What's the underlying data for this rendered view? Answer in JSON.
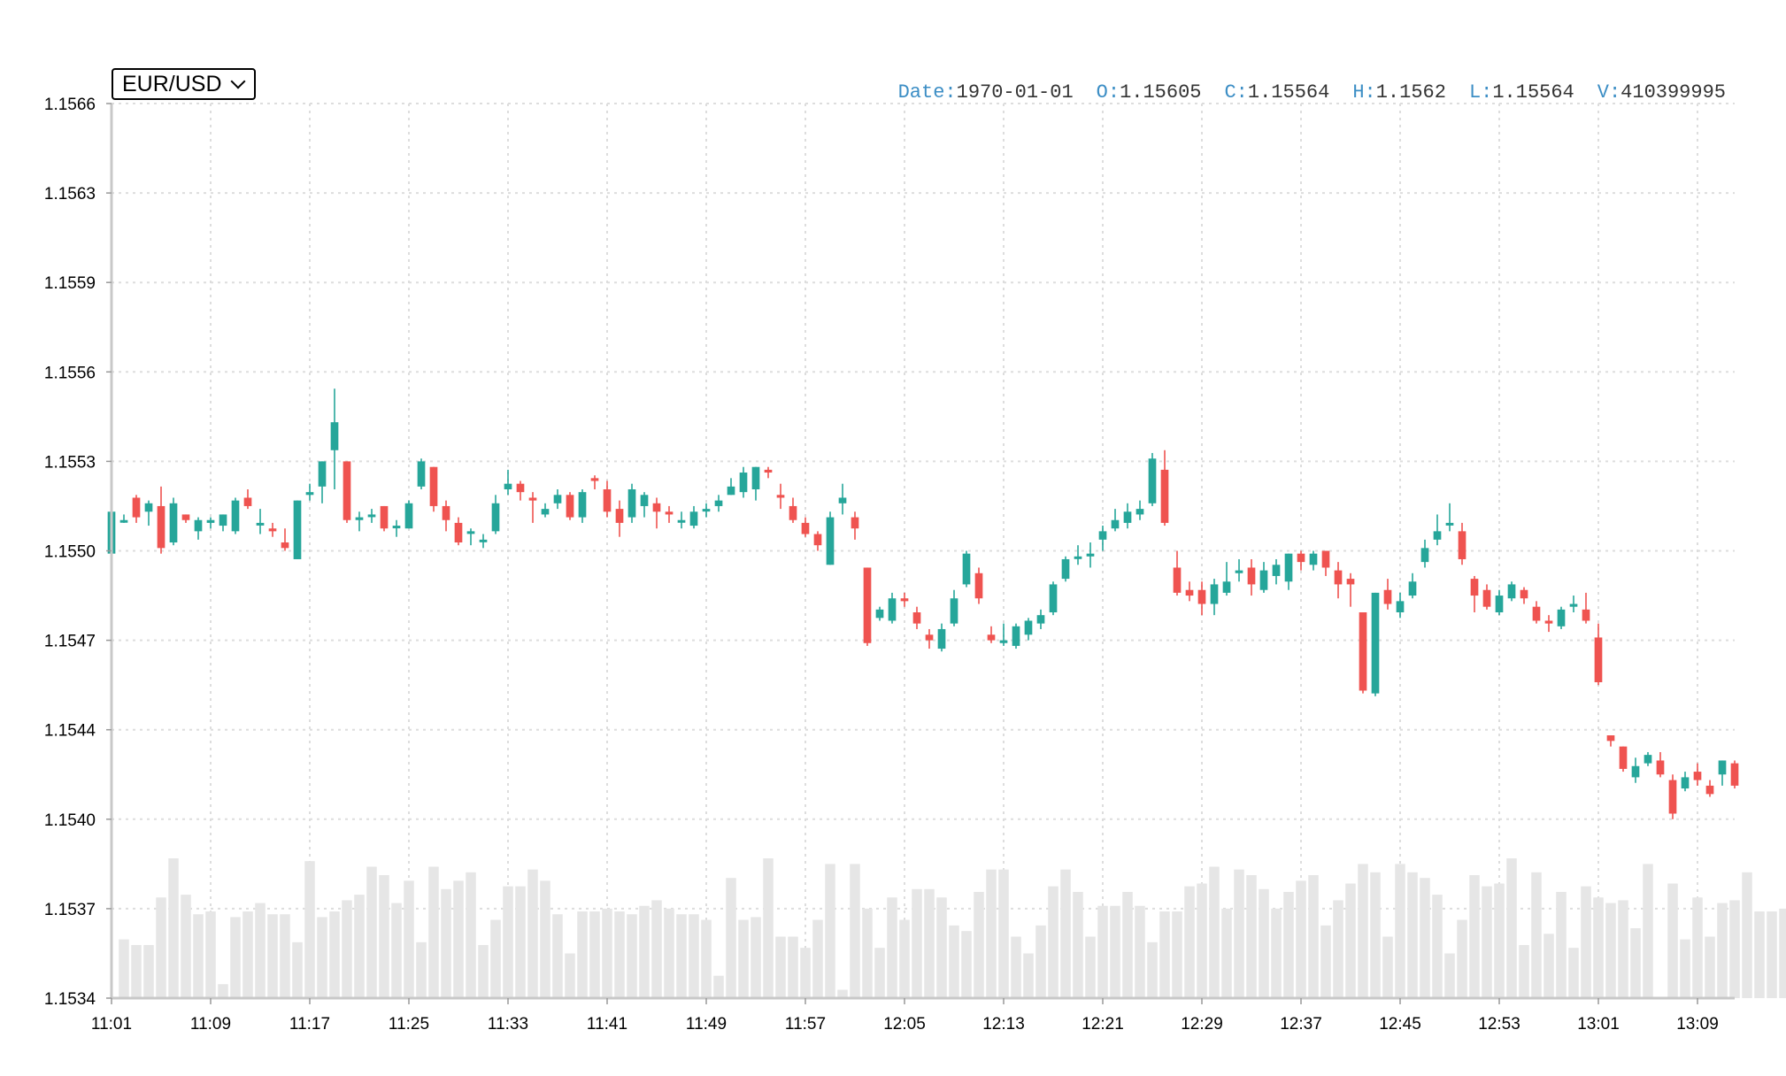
{
  "selector": {
    "selected": "EUR/USD"
  },
  "legend": {
    "date_label": "Date:",
    "date": "1970-01-01",
    "open_label": "O:",
    "open": "1.15605",
    "close_label": "C:",
    "close": "1.15564",
    "high_label": "H:",
    "high": "1.1562",
    "low_label": "L:",
    "low": "1.15564",
    "volume_label": "V:",
    "volume": "410399995"
  },
  "colors": {
    "up": "#26a69a",
    "down": "#ef5350",
    "volume": "#e6e6e6",
    "grid": "#dddddd",
    "axis": "#c8c8c8"
  },
  "chart_data": {
    "type": "candlestick",
    "ylim": [
      1.1534,
      1.1566
    ],
    "y_ticks": [
      "1.1566",
      "1.1563",
      "1.1559",
      "1.1556",
      "1.1553",
      "1.1550",
      "1.1547",
      "1.1544",
      "1.1540",
      "1.1537",
      "1.1534"
    ],
    "x_tick_labels": [
      "11:01",
      "11:09",
      "11:17",
      "11:25",
      "11:33",
      "11:41",
      "11:49",
      "11:57",
      "12:05",
      "12:13",
      "12:21",
      "12:29",
      "12:37",
      "12:45",
      "12:53",
      "13:01",
      "13:09"
    ],
    "grid": true,
    "minutes_per_bar": 1,
    "candles": [
      [
        1.15499,
        1.15514,
        1.15518,
        1.15497
      ],
      [
        1.15511,
        1.15511,
        1.15513,
        1.1551
      ],
      [
        1.15519,
        1.15512,
        1.1552,
        1.1551
      ],
      [
        1.15514,
        1.15517,
        1.15518,
        1.15509
      ],
      [
        1.15516,
        1.15501,
        1.15523,
        1.15499
      ],
      [
        1.15503,
        1.15517,
        1.15519,
        1.15502
      ],
      [
        1.15513,
        1.15511,
        1.15513,
        1.1551
      ],
      [
        1.15507,
        1.15511,
        1.15512,
        1.15504
      ],
      [
        1.1551,
        1.15511,
        1.15512,
        1.15508
      ],
      [
        1.15509,
        1.15513,
        1.15513,
        1.15507
      ],
      [
        1.15507,
        1.15518,
        1.15519,
        1.15506
      ],
      [
        1.15519,
        1.15516,
        1.15522,
        1.15515
      ],
      [
        1.1551,
        1.1551,
        1.15515,
        1.15506
      ],
      [
        1.15508,
        1.15507,
        1.1551,
        1.15505
      ],
      [
        1.15503,
        1.15501,
        1.15508,
        1.155
      ],
      [
        1.15497,
        1.15518,
        1.15518,
        1.15497
      ],
      [
        1.1552,
        1.15521,
        1.15524,
        1.15518
      ],
      [
        1.15523,
        1.15532,
        1.15532,
        1.15517
      ],
      [
        1.15536,
        1.15546,
        1.15558,
        1.15522
      ],
      [
        1.15532,
        1.15511,
        1.15532,
        1.1551
      ],
      [
        1.15511,
        1.15512,
        1.15514,
        1.15507
      ],
      [
        1.15513,
        1.15513,
        1.15515,
        1.1551
      ],
      [
        1.15516,
        1.15508,
        1.15516,
        1.15507
      ],
      [
        1.15509,
        1.15509,
        1.15511,
        1.15505
      ],
      [
        1.15508,
        1.15517,
        1.15518,
        1.15508
      ],
      [
        1.15523,
        1.15532,
        1.15533,
        1.15522
      ],
      [
        1.1553,
        1.15516,
        1.1553,
        1.15514
      ],
      [
        1.15516,
        1.15511,
        1.15518,
        1.15507
      ],
      [
        1.1551,
        1.15503,
        1.15512,
        1.15502
      ],
      [
        1.15507,
        1.15507,
        1.15508,
        1.15502
      ],
      [
        1.15504,
        1.15504,
        1.15506,
        1.15501
      ],
      [
        1.15507,
        1.15517,
        1.1552,
        1.15506
      ],
      [
        1.15522,
        1.15524,
        1.15529,
        1.1552
      ],
      [
        1.15524,
        1.15521,
        1.15525,
        1.15518
      ],
      [
        1.15519,
        1.15518,
        1.15521,
        1.1551
      ],
      [
        1.15513,
        1.15515,
        1.15517,
        1.15512
      ],
      [
        1.15517,
        1.1552,
        1.15522,
        1.15515
      ],
      [
        1.1552,
        1.15512,
        1.15521,
        1.15511
      ],
      [
        1.15512,
        1.15521,
        1.15522,
        1.1551
      ],
      [
        1.15526,
        1.15525,
        1.15527,
        1.15522
      ],
      [
        1.15522,
        1.15514,
        1.15525,
        1.15512
      ],
      [
        1.15515,
        1.1551,
        1.15518,
        1.15505
      ],
      [
        1.15512,
        1.15522,
        1.15524,
        1.1551
      ],
      [
        1.15516,
        1.1552,
        1.15521,
        1.15512
      ],
      [
        1.15517,
        1.15514,
        1.15519,
        1.15508
      ],
      [
        1.15514,
        1.15513,
        1.15516,
        1.1551
      ],
      [
        1.15511,
        1.15511,
        1.15514,
        1.15508
      ],
      [
        1.15509,
        1.15514,
        1.15516,
        1.15508
      ],
      [
        1.15515,
        1.15515,
        1.15517,
        1.15512
      ],
      [
        1.15516,
        1.15518,
        1.1552,
        1.15514
      ],
      [
        1.1552,
        1.15523,
        1.15526,
        1.1552
      ],
      [
        1.15521,
        1.15528,
        1.1553,
        1.15519
      ],
      [
        1.15522,
        1.1553,
        1.1553,
        1.15518
      ],
      [
        1.15529,
        1.15528,
        1.1553,
        1.15526
      ],
      [
        1.1552,
        1.15519,
        1.15524,
        1.15515
      ],
      [
        1.15516,
        1.15511,
        1.15519,
        1.1551
      ],
      [
        1.1551,
        1.15506,
        1.15512,
        1.15505
      ],
      [
        1.15506,
        1.15502,
        1.15507,
        1.155
      ],
      [
        1.15495,
        1.15512,
        1.15514,
        1.15495
      ],
      [
        1.15517,
        1.15519,
        1.15524,
        1.15513
      ],
      [
        1.15512,
        1.15508,
        1.15514,
        1.15504
      ],
      [
        1.15494,
        1.15467,
        1.15494,
        1.15466
      ],
      [
        1.15476,
        1.15479,
        1.1548,
        1.15475
      ],
      [
        1.15475,
        1.15483,
        1.15485,
        1.15474
      ],
      [
        1.15483,
        1.15482,
        1.15485,
        1.1548
      ],
      [
        1.15478,
        1.15474,
        1.1548,
        1.15472
      ],
      [
        1.1547,
        1.15468,
        1.15472,
        1.15465
      ],
      [
        1.15465,
        1.15472,
        1.15474,
        1.15464
      ],
      [
        1.15474,
        1.15483,
        1.15486,
        1.15473
      ],
      [
        1.15488,
        1.15499,
        1.155,
        1.15487
      ],
      [
        1.15492,
        1.15483,
        1.15494,
        1.15481
      ],
      [
        1.1547,
        1.15468,
        1.15473,
        1.15467
      ],
      [
        1.15467,
        1.15468,
        1.15474,
        1.15466
      ],
      [
        1.15466,
        1.15473,
        1.15474,
        1.15465
      ],
      [
        1.1547,
        1.15475,
        1.15476,
        1.15468
      ],
      [
        1.15474,
        1.15477,
        1.15479,
        1.15472
      ],
      [
        1.15478,
        1.15488,
        1.15489,
        1.15477
      ],
      [
        1.1549,
        1.15497,
        1.15498,
        1.15489
      ],
      [
        1.15498,
        1.15498,
        1.15502,
        1.15495
      ],
      [
        1.15498,
        1.15499,
        1.15503,
        1.15494
      ],
      [
        1.15504,
        1.15507,
        1.15509,
        1.155
      ],
      [
        1.15508,
        1.15511,
        1.15515,
        1.15507
      ],
      [
        1.1551,
        1.15514,
        1.15517,
        1.15508
      ],
      [
        1.15513,
        1.15515,
        1.15518,
        1.15511
      ],
      [
        1.15517,
        1.15533,
        1.15535,
        1.15516
      ],
      [
        1.15529,
        1.1551,
        1.15536,
        1.15509
      ],
      [
        1.15494,
        1.15485,
        1.155,
        1.15484
      ],
      [
        1.15486,
        1.15484,
        1.15489,
        1.15482
      ],
      [
        1.15486,
        1.15481,
        1.15489,
        1.15477
      ],
      [
        1.15481,
        1.15488,
        1.1549,
        1.15477
      ],
      [
        1.15485,
        1.15489,
        1.15496,
        1.15484
      ],
      [
        1.15492,
        1.15493,
        1.15497,
        1.15489
      ],
      [
        1.15494,
        1.15488,
        1.15497,
        1.15484
      ],
      [
        1.15486,
        1.15493,
        1.15496,
        1.15485
      ],
      [
        1.15491,
        1.15495,
        1.15497,
        1.15488
      ],
      [
        1.15489,
        1.15499,
        1.15499,
        1.15486
      ],
      [
        1.15499,
        1.15496,
        1.155,
        1.15493
      ],
      [
        1.15495,
        1.15499,
        1.155,
        1.15493
      ],
      [
        1.155,
        1.15494,
        1.155,
        1.15491
      ],
      [
        1.15493,
        1.15488,
        1.15496,
        1.15483
      ],
      [
        1.1549,
        1.15488,
        1.15492,
        1.1548
      ],
      [
        1.15478,
        1.1545,
        1.15478,
        1.15449
      ],
      [
        1.15449,
        1.15485,
        1.15485,
        1.15448
      ],
      [
        1.15486,
        1.15481,
        1.1549,
        1.15479
      ],
      [
        1.15478,
        1.15482,
        1.15485,
        1.15476
      ],
      [
        1.15484,
        1.15489,
        1.15492,
        1.15483
      ],
      [
        1.15496,
        1.15501,
        1.15504,
        1.15494
      ],
      [
        1.15504,
        1.15507,
        1.15513,
        1.15502
      ],
      [
        1.1551,
        1.1551,
        1.15517,
        1.15507
      ],
      [
        1.15507,
        1.15497,
        1.1551,
        1.15495
      ],
      [
        1.1549,
        1.15484,
        1.15491,
        1.15478
      ],
      [
        1.15486,
        1.1548,
        1.15488,
        1.15479
      ],
      [
        1.15478,
        1.15484,
        1.15486,
        1.15477
      ],
      [
        1.15483,
        1.15488,
        1.15489,
        1.15482
      ],
      [
        1.15486,
        1.15483,
        1.15487,
        1.15481
      ],
      [
        1.1548,
        1.15475,
        1.15482,
        1.15474
      ],
      [
        1.15475,
        1.15474,
        1.15477,
        1.15471
      ],
      [
        1.15473,
        1.15479,
        1.1548,
        1.15472
      ],
      [
        1.1548,
        1.15481,
        1.15484,
        1.15478
      ],
      [
        1.15479,
        1.15475,
        1.15485,
        1.15474
      ],
      [
        1.15469,
        1.15453,
        1.15474,
        1.15452
      ],
      [
        1.15434,
        1.15432,
        1.15434,
        1.1543
      ],
      [
        1.1543,
        1.15422,
        1.1543,
        1.15421
      ],
      [
        1.15419,
        1.15423,
        1.15426,
        1.15417
      ],
      [
        1.15424,
        1.15427,
        1.15428,
        1.15423
      ],
      [
        1.15425,
        1.1542,
        1.15428,
        1.15419
      ],
      [
        1.15418,
        1.15406,
        1.1542,
        1.15404
      ],
      [
        1.15415,
        1.15419,
        1.15421,
        1.15414
      ],
      [
        1.15421,
        1.15418,
        1.15424,
        1.15416
      ],
      [
        1.15416,
        1.15413,
        1.15418,
        1.15412
      ],
      [
        1.1542,
        1.15425,
        1.15425,
        1.15416
      ],
      [
        1.15424,
        1.15416,
        1.15425,
        1.15415
      ]
    ],
    "volumes": [
      1.15361,
      1.15359,
      1.15359,
      1.15376,
      1.1539,
      1.15377,
      1.1537,
      1.15371,
      1.15345,
      1.15369,
      1.15371,
      1.15374,
      1.1537,
      1.1537,
      1.1536,
      1.15389,
      1.15369,
      1.15371,
      1.15375,
      1.15377,
      1.15387,
      1.15384,
      1.15374,
      1.15382,
      1.1536,
      1.15387,
      1.15379,
      1.15382,
      1.15385,
      1.15359,
      1.15368,
      1.1538,
      1.1538,
      1.15386,
      1.15382,
      1.1537,
      1.15356,
      1.15371,
      1.15371,
      1.15372,
      1.15371,
      1.1537,
      1.15373,
      1.15375,
      1.15372,
      1.1537,
      1.1537,
      1.15368,
      1.15348,
      1.15383,
      1.15368,
      1.15369,
      1.1539,
      1.15362,
      1.15362,
      1.15358,
      1.15368,
      1.15388,
      1.15343,
      1.15388,
      1.15372,
      1.15358,
      1.15376,
      1.15368,
      1.15379,
      1.15379,
      1.15376,
      1.15366,
      1.15364,
      1.15378,
      1.15386,
      1.15386,
      1.15362,
      1.15356,
      1.15366,
      1.1538,
      1.15386,
      1.15378,
      1.15362,
      1.15373,
      1.15373,
      1.15378,
      1.15373,
      1.1536,
      1.15371,
      1.15371,
      1.1538,
      1.15381,
      1.15387,
      1.15372,
      1.15386,
      1.15384,
      1.15379,
      1.15372,
      1.15378,
      1.15382,
      1.15384,
      1.15366,
      1.15375,
      1.15381,
      1.15388,
      1.15385,
      1.15362,
      1.15388,
      1.15385,
      1.15383,
      1.15377,
      1.15356,
      1.15368,
      1.15384,
      1.1538,
      1.15381,
      1.1539,
      1.15359,
      1.15385,
      1.15363,
      1.15378,
      1.15358,
      1.1538,
      1.15376,
      1.15374,
      1.15375,
      1.15365,
      1.15388,
      1.15339,
      1.15381,
      1.15361,
      1.15376,
      1.15362,
      1.15374,
      1.15375,
      1.15385,
      1.15371,
      1.15371,
      1.15372,
      1.15376
    ]
  }
}
